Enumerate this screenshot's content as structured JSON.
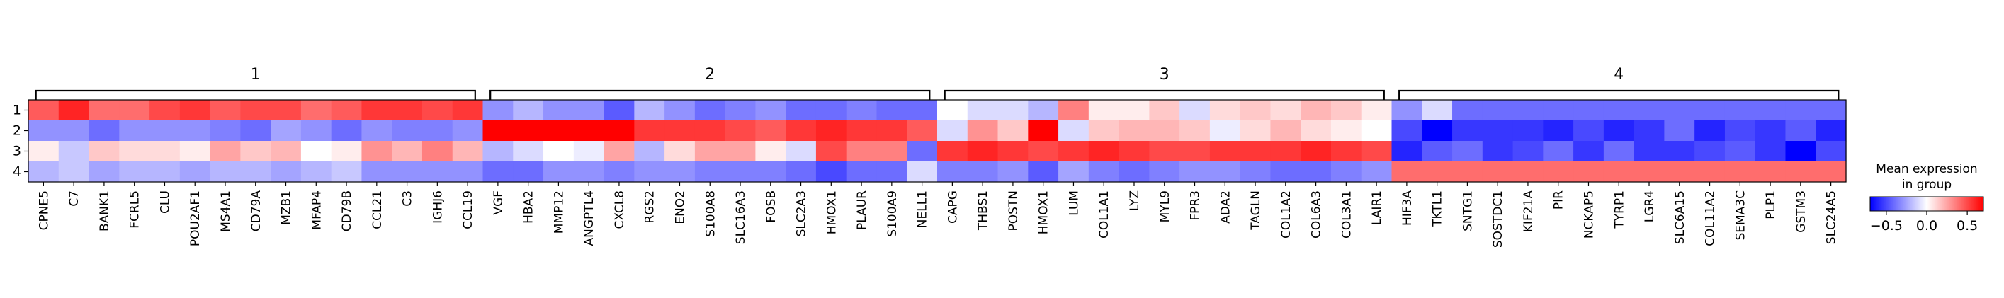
{
  "chart_data": {
    "type": "heatmap",
    "title": "",
    "rows": [
      "1",
      "2",
      "3",
      "4"
    ],
    "groups": [
      {
        "label": "1",
        "genes": [
          "CPNE5",
          "C7",
          "BANK1",
          "FCRL5",
          "CLU",
          "POU2AF1",
          "MS4A1",
          "CD79A",
          "MZB1",
          "MFAP4",
          "CD79B",
          "CCL21",
          "C3",
          "IGHJ6",
          "CCL19"
        ]
      },
      {
        "label": "2",
        "genes": [
          "VGF",
          "HBA2",
          "MMP12",
          "ANGPTL4",
          "CXCL8",
          "RGS2",
          "ENO2",
          "S100A8",
          "SLC16A3",
          "FOSB",
          "SLC2A3",
          "HMOX1",
          "PLAUR",
          "S100A9",
          "NELL1"
        ]
      },
      {
        "label": "3",
        "genes": [
          "CAPG",
          "THBS1",
          "POSTN",
          "HMOX1",
          "LUM",
          "COL1A1",
          "LYZ",
          "MYL9",
          "FPR3",
          "ADA2",
          "TAGLN",
          "COL1A2",
          "COL6A3",
          "COL3A1",
          "LAIR1"
        ]
      },
      {
        "label": "4",
        "genes": [
          "HIF3A",
          "TKTL1",
          "SNTG1",
          "SOSTDC1",
          "KIF21A",
          "PIR",
          "NCKAP5",
          "TYRP1",
          "LGR4",
          "SLC6A15",
          "COL11A2",
          "SEMA3C",
          "PLP1",
          "GSTM3",
          "SLC24A5"
        ]
      }
    ],
    "values": [
      [
        0.45,
        0.6,
        0.4,
        0.4,
        0.5,
        0.55,
        0.45,
        0.5,
        0.5,
        0.4,
        0.45,
        0.55,
        0.55,
        0.5,
        0.55,
        -0.3,
        -0.2,
        -0.3,
        -0.3,
        -0.45,
        -0.2,
        -0.3,
        -0.4,
        -0.35,
        -0.3,
        -0.4,
        -0.4,
        -0.35,
        -0.4,
        -0.4,
        0.0,
        -0.1,
        -0.1,
        -0.2,
        0.35,
        0.05,
        0.05,
        0.15,
        -0.1,
        0.1,
        0.15,
        0.1,
        0.2,
        0.15,
        0.05,
        -0.3,
        -0.1,
        -0.4,
        -0.4,
        -0.4,
        -0.4,
        -0.4,
        -0.4,
        -0.4,
        -0.4,
        -0.4,
        -0.4,
        -0.4,
        -0.4,
        -0.4
      ],
      [
        -0.3,
        -0.3,
        -0.4,
        -0.3,
        -0.3,
        -0.3,
        -0.35,
        -0.4,
        -0.25,
        -0.3,
        -0.4,
        -0.3,
        -0.35,
        -0.35,
        -0.3,
        0.85,
        0.8,
        0.8,
        0.75,
        0.8,
        0.55,
        0.55,
        0.55,
        0.5,
        0.45,
        0.55,
        0.6,
        0.55,
        0.55,
        0.45,
        -0.1,
        0.3,
        0.15,
        0.75,
        -0.1,
        0.15,
        0.2,
        0.2,
        0.15,
        -0.05,
        0.1,
        0.2,
        0.1,
        0.05,
        0.0,
        -0.5,
        -0.85,
        -0.55,
        -0.55,
        -0.55,
        -0.6,
        -0.5,
        -0.6,
        -0.55,
        -0.4,
        -0.6,
        -0.5,
        -0.55,
        -0.45,
        -0.6
      ],
      [
        0.05,
        -0.15,
        0.15,
        0.1,
        0.1,
        0.05,
        0.25,
        0.15,
        0.2,
        0.0,
        0.05,
        0.3,
        0.2,
        0.35,
        0.2,
        -0.2,
        -0.1,
        0.0,
        -0.05,
        0.25,
        -0.2,
        0.1,
        0.25,
        0.25,
        0.05,
        -0.1,
        0.5,
        0.35,
        0.35,
        -0.4,
        0.55,
        0.6,
        0.55,
        0.5,
        0.55,
        0.6,
        0.55,
        0.5,
        0.5,
        0.55,
        0.55,
        0.55,
        0.6,
        0.55,
        0.5,
        -0.6,
        -0.45,
        -0.4,
        -0.55,
        -0.5,
        -0.4,
        -0.55,
        -0.4,
        -0.55,
        -0.55,
        -0.5,
        -0.45,
        -0.55,
        -0.75,
        -0.5
      ],
      [
        -0.2,
        -0.15,
        -0.25,
        -0.2,
        -0.2,
        -0.25,
        -0.2,
        -0.2,
        -0.25,
        -0.2,
        -0.15,
        -0.3,
        -0.3,
        -0.3,
        -0.3,
        -0.4,
        -0.4,
        -0.3,
        -0.3,
        -0.35,
        -0.3,
        -0.3,
        -0.35,
        -0.35,
        -0.35,
        -0.4,
        -0.5,
        -0.4,
        -0.4,
        -0.1,
        -0.35,
        -0.35,
        -0.3,
        -0.45,
        -0.25,
        -0.35,
        -0.4,
        -0.35,
        -0.3,
        -0.3,
        -0.35,
        -0.4,
        -0.4,
        -0.35,
        -0.3,
        0.4,
        0.4,
        0.4,
        0.4,
        0.4,
        0.4,
        0.4,
        0.4,
        0.4,
        0.4,
        0.4,
        0.4,
        0.4,
        0.4,
        0.4
      ]
    ],
    "vmin": -0.7,
    "vmax": 0.7,
    "colormap": [
      "#0000ff",
      "#ffffff",
      "#ff0000"
    ],
    "colorbar": {
      "title_lines": [
        "Mean expression",
        "in group"
      ],
      "ticks": [
        -0.5,
        0.0,
        0.5
      ],
      "tick_labels": [
        "−0.5",
        "0.0",
        "0.5"
      ],
      "placement": "right"
    }
  }
}
